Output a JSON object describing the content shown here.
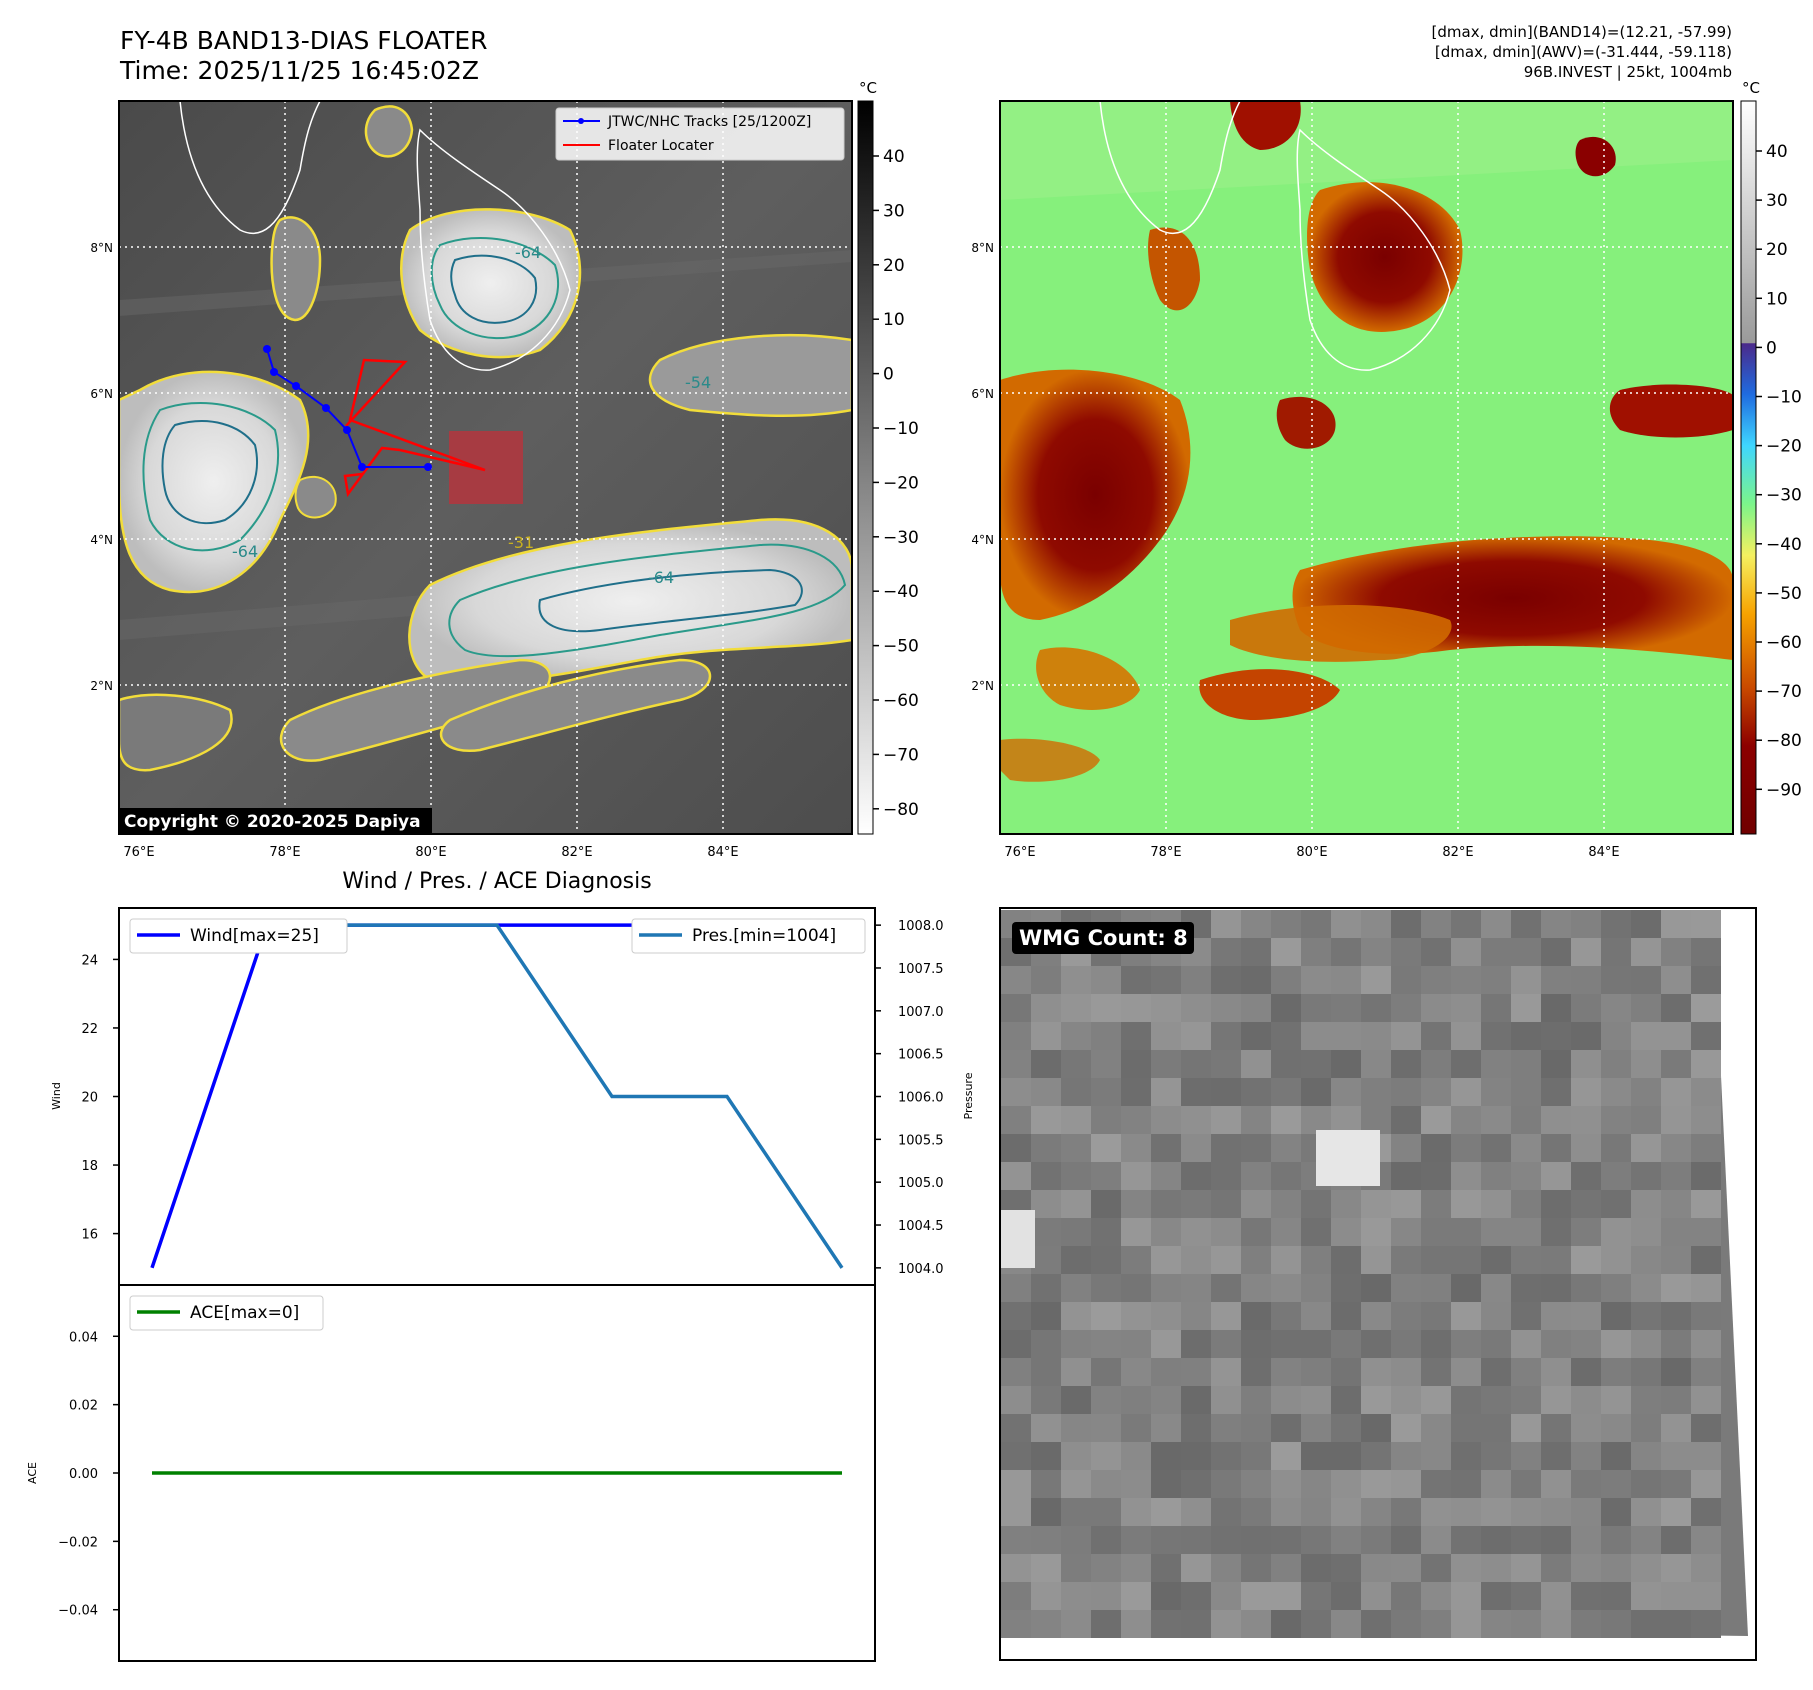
{
  "header": {
    "title": "FY-4B BAND13-DIAS FLOATER",
    "time": "Time: 2025/11/25 16:45:02Z",
    "info_lines": [
      "[dmax, dmin](BAND14)=(12.21, -57.99)",
      "[dmax, dmin](AWV)=(-31.444, -59.118)",
      "96B.INVEST | 25kt, 1004mb"
    ]
  },
  "copyright": "Copyright © 2020-2025 Dapiya",
  "lon_ticks": [
    "76°E",
    "78°E",
    "80°E",
    "82°E",
    "84°E"
  ],
  "lat_ticks": [
    "8°N",
    "6°N",
    "4°N",
    "2°N"
  ],
  "colorbar_unit": "°C",
  "colorbar_left_ticks": [
    "40",
    "30",
    "20",
    "10",
    "0",
    "−10",
    "−20",
    "−30",
    "−40",
    "−50",
    "−60",
    "−70",
    "−80"
  ],
  "colorbar_right_ticks": [
    "40",
    "30",
    "20",
    "10",
    "0",
    "−10",
    "−20",
    "−30",
    "−40",
    "−50",
    "−60",
    "−70",
    "−80",
    "−90"
  ],
  "contour_labels": [
    "-31",
    "-54",
    "-64"
  ],
  "legend": {
    "tracks": "JTWC/NHC Tracks [25/1200Z]",
    "floater": "Floater Locater"
  },
  "colors": {
    "tracks": "#0000ff",
    "floater": "#ff0000",
    "wind": "#0000ff",
    "pressure": "#1f77b4",
    "ace": "#008000"
  },
  "wmg_count": "WMG Count: 8",
  "chart_data": [
    {
      "type": "line",
      "title": "Wind / Pres. / ACE Diagnosis",
      "ylabel": "Wind",
      "y2label": "Pressure",
      "ylim": [
        14.5,
        25.5
      ],
      "y2lim": [
        1003.8,
        1008.2
      ],
      "yticks": [
        "24",
        "22",
        "20",
        "18",
        "16"
      ],
      "y2ticks": [
        "1008.0",
        "1007.5",
        "1007.0",
        "1006.5",
        "1006.0",
        "1005.5",
        "1005.0",
        "1004.5",
        "1004.0"
      ],
      "series": [
        {
          "name": "Wind[max=25]",
          "axis": "left",
          "values": [
            15,
            25,
            25,
            25,
            25,
            25,
            25
          ]
        },
        {
          "name": "Pres.[min=1004]",
          "axis": "right",
          "values": [
            1008,
            1008,
            1008,
            1008,
            1006,
            1006,
            1004
          ]
        }
      ]
    },
    {
      "type": "line",
      "ylabel": "ACE",
      "ylim": [
        -0.055,
        0.055
      ],
      "yticks": [
        "0.04",
        "0.02",
        "0.00",
        "−0.02",
        "−0.04"
      ],
      "series": [
        {
          "name": "ACE[max=0]",
          "values": [
            0,
            0,
            0,
            0,
            0,
            0,
            0
          ]
        }
      ]
    }
  ]
}
